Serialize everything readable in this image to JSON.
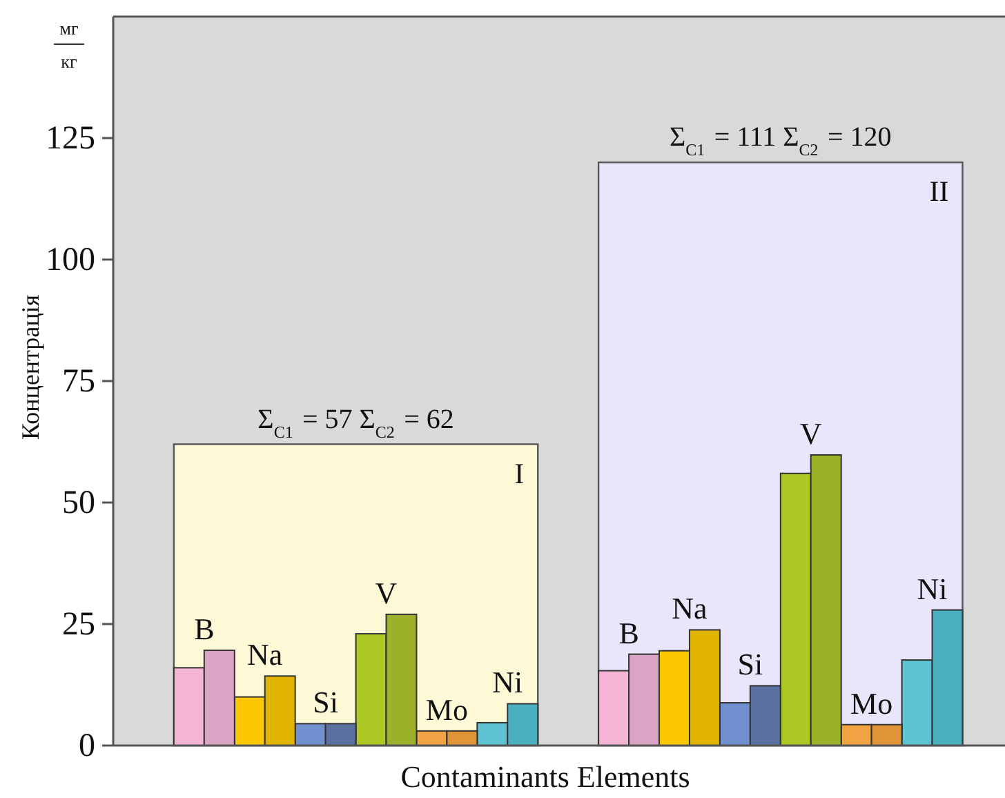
{
  "chart_data": {
    "type": "bar",
    "xlabel": "Contaminants Elements",
    "ylabel": "Концентрація",
    "categories": [
      "B",
      "Na",
      "Si",
      "V",
      "Mo",
      "Ni",
      null,
      "B",
      "Na",
      "Si",
      "V",
      "Mo",
      "Ni"
    ],
    "series": [
      {
        "colors": [
          "#f4b4d4",
          "#fcc800",
          "#7090d0",
          "#acc823",
          "#f2a444",
          "#5ec4d4",
          null,
          "#f4b4d4",
          "#fcc800",
          "#7090d0",
          "#acc823",
          "#f2a444",
          "#5ec4d4"
        ],
        "values": [
          16,
          10,
          4.5,
          23,
          3,
          4.7,
          null,
          15.4,
          19.5,
          8.8,
          56,
          4.3,
          17.6
        ]
      },
      {
        "colors": [
          "#dba3c4",
          "#e0b400",
          "#5a70a0",
          "#9cb02a",
          "#e09438",
          "#4ab0c0",
          null,
          "#dba3c4",
          "#e0b400",
          "#5a70a0",
          "#9cb02a",
          "#e09438",
          "#4ab0c0"
        ],
        "values": [
          19.6,
          14.3,
          4.5,
          27,
          3,
          8.6,
          null,
          18.8,
          23.8,
          12.3,
          59.8,
          4.3,
          27.9
        ]
      }
    ],
    "bands": [
      {
        "axis": "y",
        "from": 0,
        "to": 62,
        "label": "I",
        "color": "#fdf9d6"
      },
      {
        "axis": "y",
        "from": 0,
        "to": 120,
        "label": "II",
        "color": "#e9e6fb"
      }
    ],
    "annotations": [
      "Σ$_{C1}$ = 57    Σ$_{C2}$ = 62",
      "Σ$_{C1}$ = 111  Σ$_{C2}$ = 120",
      "мг",
      "кг"
    ],
    "ylim": [
      0,
      150
    ],
    "yticks": [
      0,
      25,
      50,
      75,
      100,
      125
    ],
    "grid": false
  }
}
